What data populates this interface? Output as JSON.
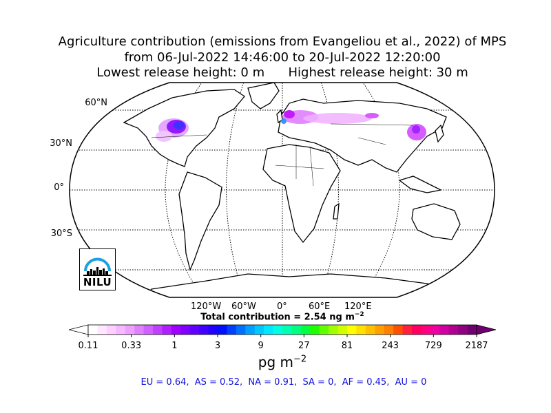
{
  "title": {
    "line1": "Agriculture contribution (emissions from Evangeliou et al., 2022) of MPS",
    "line2": "from 06-Jul-2022 14:46:00 to 20-Jul-2022 12:20:00",
    "line3_left": "Lowest release height: 0 m",
    "line3_right": "Highest release height: 30 m"
  },
  "map": {
    "projection": "Robinson",
    "grid": true,
    "lat_labels": [
      "60°N",
      "30°N",
      "0°",
      "30°S"
    ],
    "lon_labels": [
      "120°W",
      "60°W",
      "0°",
      "60°E",
      "120°E"
    ],
    "ocean_color": "#ffffff",
    "coast_color": "#000000",
    "hotspots": [
      {
        "region": "North America",
        "colors": [
          "#8a00ff",
          "#2a1cff",
          "#c400ff",
          "#f0c0ff"
        ]
      },
      {
        "region": "Europe",
        "colors": [
          "#c000ff",
          "#1a8cff",
          "#00b0c0",
          "#e080ff"
        ]
      },
      {
        "region": "Asia",
        "colors": [
          "#d040ff",
          "#9000ff",
          "#f0b0ff"
        ]
      }
    ]
  },
  "logo": {
    "text": "NILU",
    "arc_color": "#1ca0e0"
  },
  "total_contribution": "Total contribution = 2.54 ng m",
  "total_unit_exp": "−2",
  "colorbar": {
    "tick_labels": [
      "0.11",
      "0.33",
      "1",
      "3",
      "9",
      "27",
      "81",
      "243",
      "729",
      "2187"
    ],
    "unit": "pg m",
    "unit_exp": "−2",
    "colors": [
      "#ffffff",
      "#ffe8ff",
      "#ffd0ff",
      "#f6b8ff",
      "#eea0ff",
      "#e080ff",
      "#d060ff",
      "#c040ff",
      "#b020ff",
      "#a000ff",
      "#8000ff",
      "#6000ff",
      "#4000ff",
      "#2000ff",
      "#0010ff",
      "#0040ff",
      "#0070ff",
      "#00a0ff",
      "#00c8ff",
      "#00e8ff",
      "#00ffe0",
      "#00ffb0",
      "#00ff80",
      "#00ff40",
      "#20ff00",
      "#60ff00",
      "#a0ff00",
      "#d0ff00",
      "#ffff00",
      "#ffe000",
      "#ffc000",
      "#ffa000",
      "#ff8000",
      "#ff5000",
      "#ff2040",
      "#ff0060",
      "#ff0080",
      "#f000a0",
      "#d000a0",
      "#b00090",
      "#900080",
      "#700070"
    ]
  },
  "regions_line": "EU = 0.64,  AS = 0.52,  NA = 0.91,  SA = 0,  AF = 0.45,  AU = 0"
}
